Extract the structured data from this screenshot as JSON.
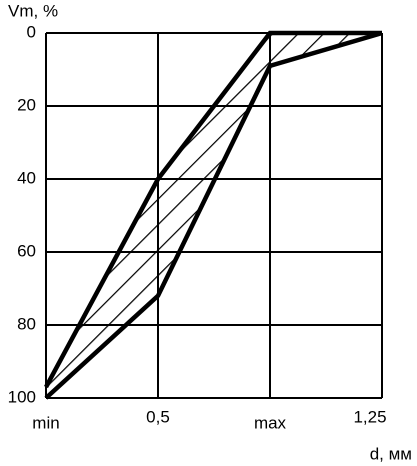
{
  "chart_data": {
    "type": "line",
    "y_label": "Vm, %",
    "x_label": "d, мм",
    "categories": [
      "min",
      "0,5",
      "max",
      "1,25"
    ],
    "series": [
      {
        "color": "#000000",
        "values": [
          97,
          40,
          0,
          0
        ]
      },
      {
        "color": "#000000",
        "values": [
          100,
          72,
          9,
          0
        ]
      }
    ],
    "ylim": [
      0,
      100
    ],
    "yticks": [
      0,
      20,
      40,
      60,
      80,
      100
    ],
    "y_inverted": true,
    "grid": true,
    "band_fill": "hatch"
  }
}
